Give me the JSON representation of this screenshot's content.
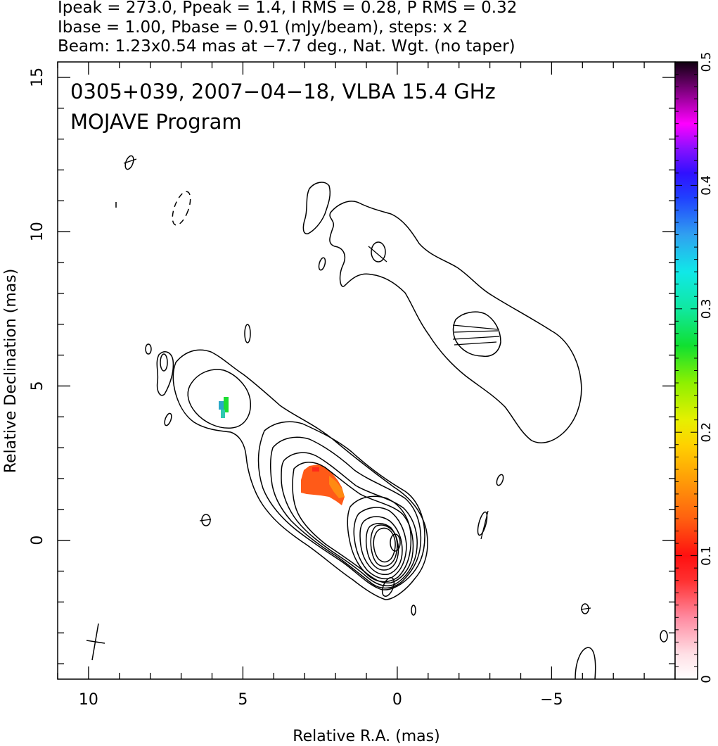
{
  "header": {
    "line1": "Ipeak = 273.0, Ppeak = 1.4, I RMS = 0.28, P RMS = 0.32",
    "line2": "Ibase = 1.00, Pbase = 0.91 (mJy/beam), steps: x 2",
    "line3": "Beam: 1.23x0.54 mas at −7.7 deg., Nat. Wgt. (no taper)"
  },
  "chart_data": {
    "type": "heatmap",
    "title": "0305+039, 2007−04−18, VLBA 15.4 GHz",
    "subtitle": "MOJAVE Program",
    "xlabel": "Relative R.A. (mas)",
    "ylabel": "Relative Declination (mas)",
    "xlim": [
      11,
      -9
    ],
    "ylim": [
      -4.5,
      15.5
    ],
    "x_ticks": [
      10,
      5,
      0,
      -5
    ],
    "x_tick_labels": [
      "10",
      "5",
      "0",
      "−5"
    ],
    "y_ticks": [
      0,
      5,
      10,
      15
    ],
    "y_tick_labels": [
      "0",
      "5",
      "10",
      "15"
    ],
    "colorbar": {
      "range": [
        0,
        0.5
      ],
      "ticks": [
        0,
        0.1,
        0.2,
        0.3,
        0.4,
        0.5
      ],
      "tick_labels": [
        "0",
        "0.1",
        "0.2",
        "0.3",
        "0.4",
        "0.5"
      ]
    },
    "intensity": {
      "peak_mjy_per_beam": 273.0,
      "base_mjy_per_beam": 1.0,
      "contour_step_factor": 2,
      "core": [
        0,
        0
      ]
    },
    "polarization_regions": [
      {
        "ra": 2.5,
        "dec": 2.0,
        "fractional_pol": 0.11
      },
      {
        "ra": 5.6,
        "dec": 4.4,
        "fractional_pol": 0.25
      }
    ],
    "grid": false
  }
}
